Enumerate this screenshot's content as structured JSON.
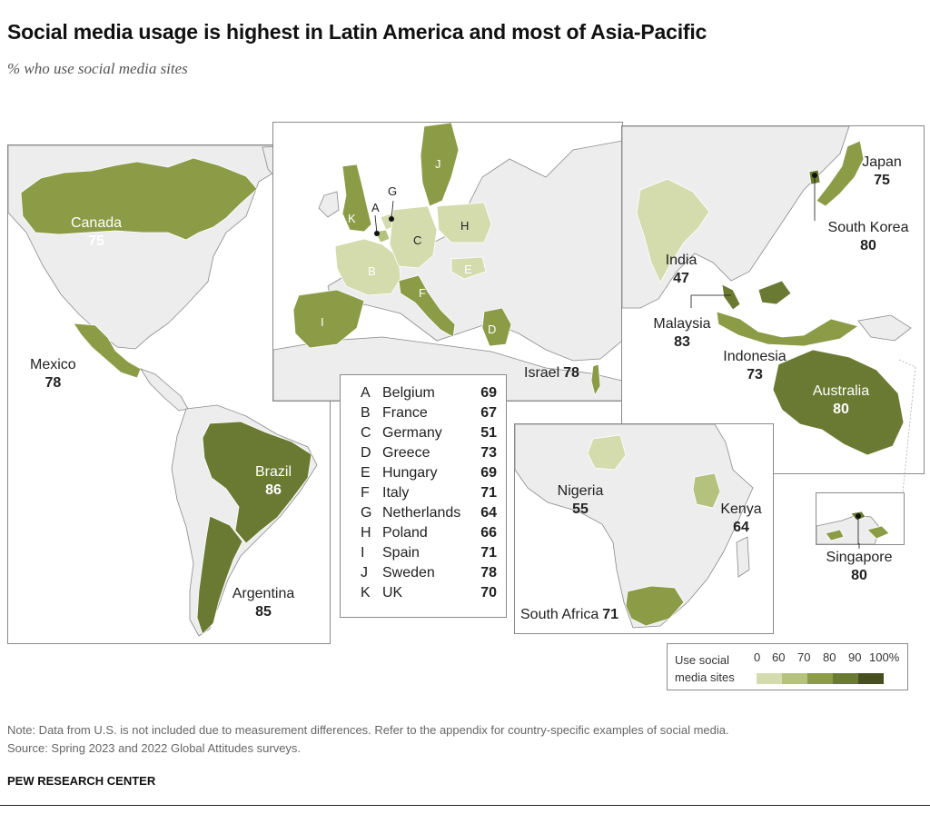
{
  "title": "Social media usage is highest in Latin America and most of Asia-Pacific",
  "subtitle": "% who use social media sites",
  "colors": {
    "land": "#ededed",
    "water": "#ffffff",
    "border": "#8a8a8a",
    "scale": [
      "#d4dcae",
      "#b5c27e",
      "#8c9b46",
      "#6b7a32",
      "#474f1f"
    ]
  },
  "americas": {
    "canada": {
      "name": "Canada",
      "value": "75"
    },
    "mexico": {
      "name": "Mexico",
      "value": "78"
    },
    "brazil": {
      "name": "Brazil",
      "value": "86"
    },
    "argentina": {
      "name": "Argentina",
      "value": "85"
    }
  },
  "europe": {
    "letters": [
      "A",
      "B",
      "C",
      "D",
      "E",
      "F",
      "G",
      "H",
      "I",
      "J",
      "K"
    ],
    "israel": {
      "name": "Israel",
      "value": "78"
    },
    "table": [
      {
        "key": "A",
        "country": "Belgium",
        "value": "69"
      },
      {
        "key": "B",
        "country": "France",
        "value": "67"
      },
      {
        "key": "C",
        "country": "Germany",
        "value": "51"
      },
      {
        "key": "D",
        "country": "Greece",
        "value": "73"
      },
      {
        "key": "E",
        "country": "Hungary",
        "value": "69"
      },
      {
        "key": "F",
        "country": "Italy",
        "value": "71"
      },
      {
        "key": "G",
        "country": "Netherlands",
        "value": "64"
      },
      {
        "key": "H",
        "country": "Poland",
        "value": "66"
      },
      {
        "key": "I",
        "country": "Spain",
        "value": "71"
      },
      {
        "key": "J",
        "country": "Sweden",
        "value": "78"
      },
      {
        "key": "K",
        "country": "UK",
        "value": "70"
      }
    ]
  },
  "asia": {
    "japan": {
      "name": "Japan",
      "value": "75"
    },
    "south_korea": {
      "name": "South Korea",
      "value": "80"
    },
    "india": {
      "name": "India",
      "value": "47"
    },
    "malaysia": {
      "name": "Malaysia",
      "value": "83"
    },
    "indonesia": {
      "name": "Indonesia",
      "value": "73"
    },
    "australia": {
      "name": "Australia",
      "value": "80"
    },
    "singapore": {
      "name": "Singapore",
      "value": "80"
    }
  },
  "africa": {
    "nigeria": {
      "name": "Nigeria",
      "value": "55"
    },
    "kenya": {
      "name": "Kenya",
      "value": "64"
    },
    "south_africa": {
      "name": "South Africa",
      "value": "71"
    }
  },
  "legend": {
    "caption_line1": "Use social",
    "caption_line2": "media sites",
    "ticks": [
      "0",
      "60",
      "70",
      "80",
      "90",
      "100%"
    ]
  },
  "note": "Note: Data from U.S. is not included due to measurement differences. Refer to the appendix for country-specific examples of social media.",
  "source": "Source: Spring 2023 and 2022 Global Attitudes surveys.",
  "org": "PEW RESEARCH CENTER"
}
